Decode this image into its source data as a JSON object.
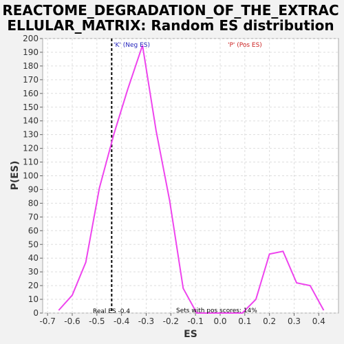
{
  "chart_data": {
    "type": "line",
    "title_line1": "REACTOME_DEGRADATION_OF_THE_EXTRAC",
    "title_line2": "ELLULAR_MATRIX: Random ES distribution",
    "xlabel": "ES",
    "ylabel": "P(ES)",
    "xlim": [
      -0.72,
      0.48
    ],
    "ylim": [
      0,
      200
    ],
    "x_ticks": [
      -0.7,
      -0.6,
      -0.5,
      -0.4,
      -0.3,
      -0.2,
      -0.1,
      0.0,
      0.1,
      0.2,
      0.3,
      0.4
    ],
    "x_tick_labels": [
      "-0.7",
      "-0.6",
      "-0.5",
      "-0.4",
      "-0.3",
      "-0.2",
      "-0.1",
      "0.0",
      "0.1",
      "0.2",
      "0.3",
      "0.4"
    ],
    "y_ticks": [
      0,
      10,
      20,
      30,
      40,
      50,
      60,
      70,
      80,
      90,
      100,
      110,
      120,
      130,
      140,
      150,
      160,
      170,
      180,
      190,
      200
    ],
    "y_tick_labels": [
      "0",
      "10",
      "20",
      "30",
      "40",
      "50",
      "60",
      "70",
      "80",
      "90",
      "100",
      "110",
      "120",
      "130",
      "140",
      "150",
      "160",
      "170",
      "180",
      "190",
      "200"
    ],
    "grid": true,
    "series": [
      {
        "color": "#ee44ee",
        "x": [
          -0.655,
          -0.6,
          -0.545,
          -0.49,
          -0.43,
          -0.375,
          -0.315,
          -0.26,
          -0.205,
          -0.15,
          -0.095,
          0.09,
          0.145,
          0.2,
          0.255,
          0.31,
          0.365,
          0.42
        ],
        "y": [
          2,
          13,
          37,
          91,
          131,
          163,
          195,
          133,
          82,
          18,
          0,
          0,
          10,
          43,
          45,
          22,
          20,
          2
        ]
      }
    ],
    "real_es": -0.44,
    "real_es_line_color": "#000000",
    "annotations": {
      "neg_label": "'K' (Neg ES)",
      "neg_color": "#2222bb",
      "pos_label": "'P' (Pos ES)",
      "pos_color": "#cc2222",
      "real_es_label": "Real ES -0.4",
      "pos_scores_label": "Sets with pos scores: 14%"
    }
  }
}
